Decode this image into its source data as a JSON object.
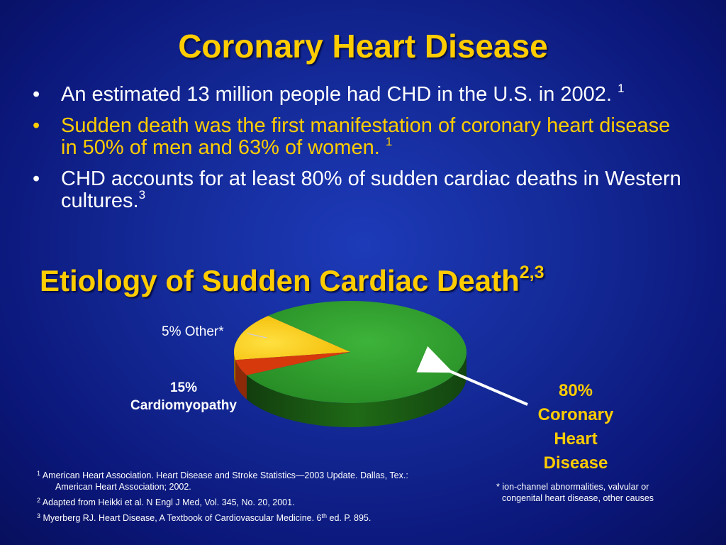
{
  "title": "Coronary Heart Disease",
  "bullets": [
    {
      "text": "An estimated 13 million people had CHD in the U.S. in 2002.",
      "ref": "1"
    },
    {
      "text": "Sudden death was the first manifestation of coronary heart disease in 50% of men and 63% of women.",
      "ref": "1"
    },
    {
      "text": "CHD accounts for at least 80% of sudden cardiac deaths in Western cultures.",
      "ref": "3"
    }
  ],
  "bullet_glyph": "•",
  "highlight_color": "#ffcc00",
  "chart_data": {
    "type": "pie",
    "title": "Etiology of Sudden Cardiac Death",
    "title_ref": "2,3",
    "slices": [
      {
        "label_pct": "80%",
        "label": "Coronary Heart Disease",
        "value": 80,
        "color": "#2e9a2e"
      },
      {
        "label_pct": "15%",
        "label": "Cardiomyopathy",
        "value": 15,
        "color": "#ffcc00"
      },
      {
        "label_pct": "5%",
        "label": "Other*",
        "value": 5,
        "color": "#d63a0c"
      }
    ]
  },
  "labels": {
    "other": "5% Other*",
    "cardio_pct": "15%",
    "cardio_name": "Cardiomyopathy",
    "chd_pct": "80%",
    "chd_line1": "Coronary",
    "chd_line2": "Heart",
    "chd_line3": "Disease"
  },
  "references": [
    {
      "num": "1",
      "line1": "American Heart Association.  Heart Disease and Stroke Statistics—2003 Update.  Dallas, Tex.:",
      "line2": "American Heart Association; 2002."
    },
    {
      "num": "2",
      "line1": "Adapted from Heikki et al.  N Engl J Med, Vol. 345, No. 20, 2001."
    },
    {
      "num": "3",
      "line1_pre": "Myerberg RJ. Heart Disease, A Textbook of Cardiovascular Medicine. 6",
      "line1_sup": "th",
      "line1_post": " ed.  P. 895."
    }
  ],
  "footnote": {
    "line1": "* ion-channel abnormalities, valvular or",
    "line2": "congenital heart disease, other causes"
  }
}
